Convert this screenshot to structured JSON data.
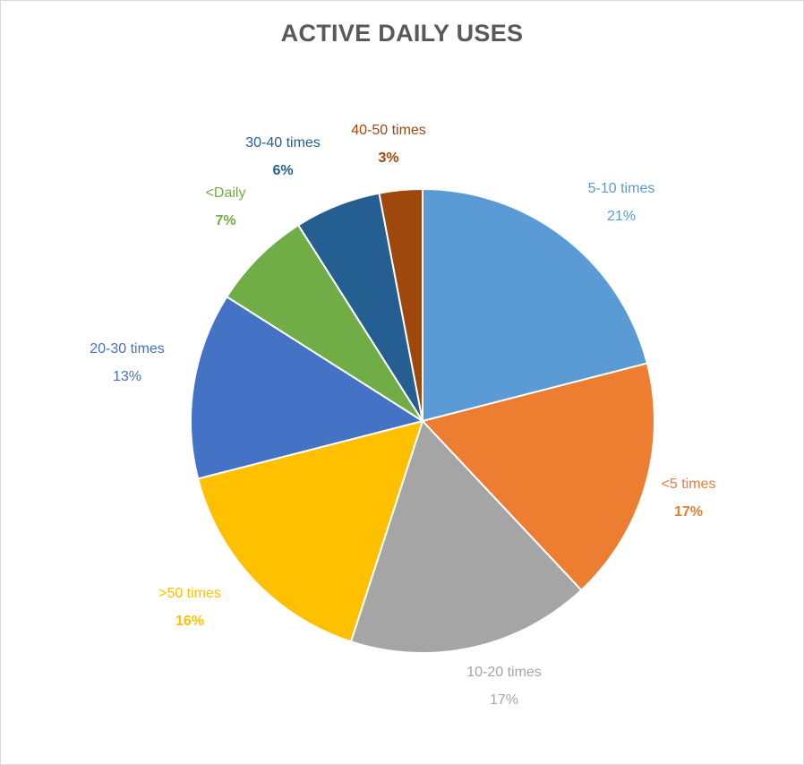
{
  "chart_data": {
    "type": "pie",
    "title": "ACTIVE DAILY USES",
    "categories": [
      "5-10 times",
      "<5 times",
      "10-20 times",
      ">50 times",
      "20-30 times",
      "<Daily",
      "30-40 times",
      "40-50 times"
    ],
    "values": [
      21,
      17,
      17,
      16,
      13,
      7,
      6,
      3
    ],
    "value_labels": [
      "21%",
      "17%",
      "17%",
      "16%",
      "13%",
      "7%",
      "6%",
      "3%"
    ],
    "colors": [
      "#5b9bd5",
      "#ed7d31",
      "#a5a5a5",
      "#ffc000",
      "#4472c4",
      "#70ad47",
      "#255e91",
      "#9e480e"
    ],
    "label_colors": [
      "#5b9bd5",
      "#ed7d31",
      "#a5a5a5",
      "#ffc000",
      "#4472c4",
      "#70ad47",
      "#255e91",
      "#9e480e"
    ],
    "bold_labels": [
      false,
      true,
      false,
      true,
      false,
      true,
      true,
      true
    ],
    "start_angle_deg": 0,
    "direction": "clockwise",
    "legend": "none"
  }
}
